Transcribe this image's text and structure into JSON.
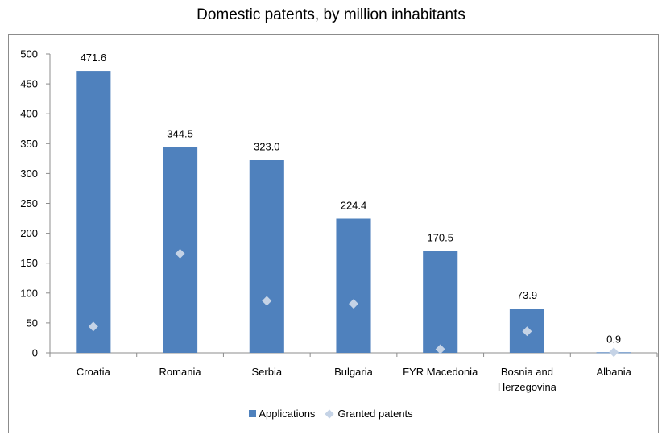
{
  "title": "Domestic patents, by million inhabitants",
  "legend": {
    "applications": "Applications",
    "granted": "Granted patents"
  },
  "colors": {
    "bar": "#4f81bd",
    "marker": "#c5d3e6",
    "axis": "#8c8c8c"
  },
  "chart_data": {
    "type": "bar",
    "title": "Domestic patents, by million inhabitants",
    "categories": [
      "Croatia",
      "Romania",
      "Serbia",
      "Bulgaria",
      "FYR Macedonia",
      "Bosnia and Herzegovina",
      "Albania"
    ],
    "category_lines": [
      [
        "Croatia"
      ],
      [
        "Romania"
      ],
      [
        "Serbia"
      ],
      [
        "Bulgaria"
      ],
      [
        "FYR Macedonia"
      ],
      [
        "Bosnia and",
        "Herzegovina"
      ],
      [
        "Albania"
      ]
    ],
    "series": [
      {
        "name": "Applications",
        "kind": "bar",
        "values": [
          471.6,
          344.5,
          323.0,
          224.4,
          170.5,
          73.9,
          0.9
        ],
        "labels": [
          "471.6",
          "344.5",
          "323.0",
          "224.4",
          "170.5",
          "73.9",
          "0.9"
        ]
      },
      {
        "name": "Granted patents",
        "kind": "marker",
        "values": [
          44,
          166,
          87,
          82,
          6,
          36,
          1
        ]
      }
    ],
    "ylim": [
      0,
      500
    ],
    "yticks": [
      0,
      50,
      100,
      150,
      200,
      250,
      300,
      350,
      400,
      450,
      500
    ],
    "grid": false,
    "legend_position": "bottom"
  }
}
